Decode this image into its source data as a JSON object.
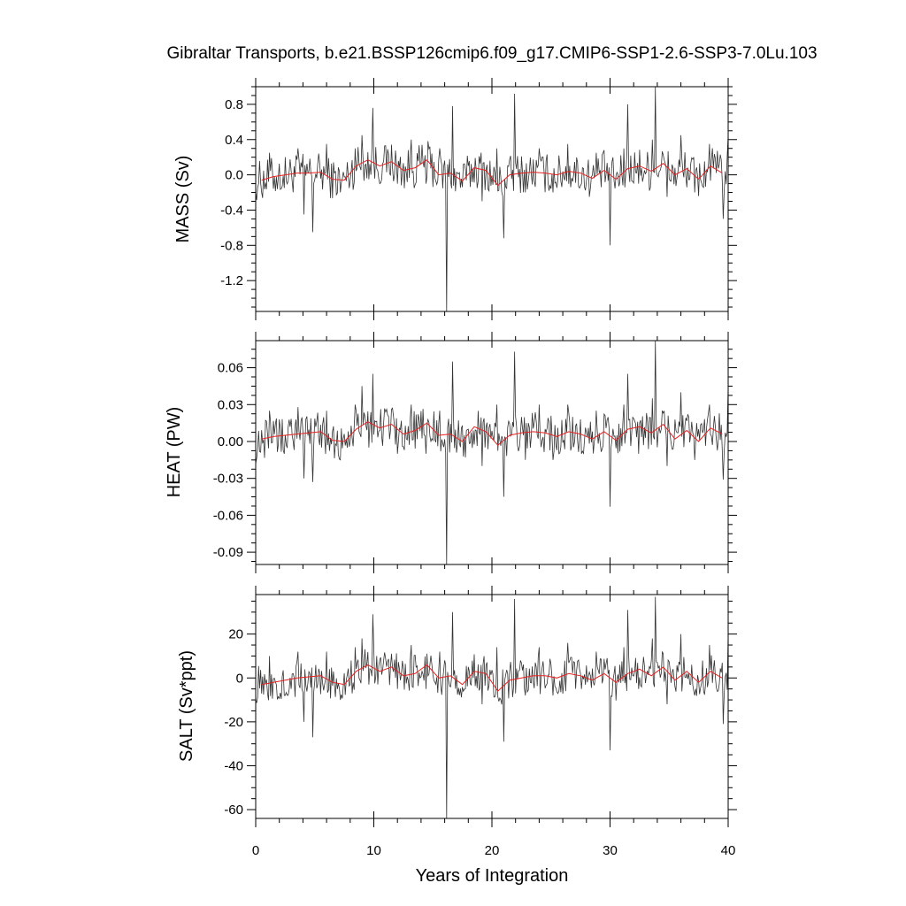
{
  "figure": {
    "title": "Gibraltar Transports, b.e21.BSSP126cmip6.f09_g17.CMIP6-SSP1-2.6-SSP3-7.0Lu.103",
    "xlabel": "Years of Integration"
  },
  "colors": {
    "raw_series": "#333333",
    "smooth_series": "#e82020",
    "axes": "#000000"
  },
  "chart_data": [
    {
      "type": "line",
      "panel": "mass",
      "title": "",
      "xlabel": "",
      "ylabel": "MASS (Sv)",
      "xlim": [
        0,
        40
      ],
      "ylim": [
        -1.55,
        1.0
      ],
      "yticks": [
        -1.2,
        -0.8,
        -0.4,
        0.0,
        0.4,
        0.8
      ],
      "ytick_labels": [
        "-1.2",
        "-0.8",
        "-0.4",
        "0.0",
        "0.4",
        "0.8"
      ],
      "grid": false,
      "series": [
        {
          "kind": "monthly-raw",
          "amplitude": 0.23,
          "x": [
            0.0,
            1.2,
            2.4,
            3.6,
            4.1,
            4.8,
            6.0,
            7.2,
            8.4,
            9.0,
            9.6,
            9.9,
            10.8,
            12.0,
            13.2,
            14.4,
            15.6,
            16.2,
            16.7,
            18.0,
            19.2,
            20.4,
            21.0,
            21.9,
            22.8,
            24.0,
            25.2,
            26.4,
            27.6,
            28.8,
            30.0,
            31.2,
            31.5,
            32.4,
            33.6,
            33.8,
            34.8,
            36.0,
            37.2,
            38.4,
            39.6,
            40.0
          ],
          "y": [
            -0.2,
            0.25,
            -0.15,
            0.3,
            -0.45,
            -0.65,
            0.35,
            -0.2,
            0.3,
            0.45,
            -0.05,
            0.76,
            0.15,
            -0.1,
            0.4,
            -0.1,
            0.3,
            -1.55,
            0.78,
            0.1,
            -0.3,
            0.3,
            -0.72,
            0.92,
            -0.2,
            0.3,
            -0.2,
            0.35,
            -0.1,
            0.25,
            -0.8,
            0.3,
            0.8,
            -0.1,
            0.4,
            1.0,
            -0.25,
            0.45,
            -0.2,
            0.35,
            -0.5,
            0.45
          ]
        },
        {
          "kind": "annual-mean",
          "x": [
            0.5,
            1.5,
            2.5,
            3.5,
            4.5,
            5.5,
            6.5,
            7.5,
            8.5,
            9.5,
            10.5,
            11.5,
            12.5,
            13.5,
            14.5,
            15.5,
            16.5,
            17.5,
            18.5,
            19.5,
            20.5,
            21.5,
            22.5,
            23.5,
            24.5,
            25.5,
            26.5,
            27.5,
            28.5,
            29.5,
            30.5,
            31.5,
            32.5,
            33.5,
            34.5,
            35.5,
            36.5,
            37.5,
            38.5,
            39.5
          ],
          "y": [
            -0.06,
            -0.02,
            0.0,
            0.02,
            0.02,
            0.03,
            -0.05,
            -0.06,
            0.1,
            0.17,
            0.1,
            0.15,
            0.05,
            0.08,
            0.17,
            0.0,
            0.02,
            -0.07,
            0.08,
            0.05,
            -0.12,
            0.0,
            0.02,
            0.03,
            0.02,
            0.0,
            0.04,
            0.02,
            -0.04,
            0.05,
            -0.05,
            0.07,
            0.1,
            0.04,
            0.13,
            0.0,
            0.07,
            -0.05,
            0.1,
            0.02
          ]
        }
      ]
    },
    {
      "type": "line",
      "panel": "heat",
      "title": "",
      "xlabel": "",
      "ylabel": "HEAT (PW)",
      "xlim": [
        0,
        40
      ],
      "ylim": [
        -0.1,
        0.082
      ],
      "yticks": [
        -0.09,
        -0.06,
        -0.03,
        0.0,
        0.03,
        0.06
      ],
      "ytick_labels": [
        "-0.09",
        "-0.06",
        "-0.03",
        "0.00",
        "0.03",
        "0.06"
      ],
      "grid": false,
      "series": [
        {
          "kind": "monthly-raw",
          "amplitude": 0.016,
          "x": [
            0.0,
            1.2,
            2.4,
            3.6,
            4.1,
            4.8,
            6.0,
            7.2,
            8.4,
            9.0,
            9.6,
            9.9,
            10.8,
            12.0,
            13.2,
            14.4,
            15.6,
            16.2,
            16.7,
            18.0,
            19.2,
            20.4,
            21.0,
            21.9,
            22.8,
            24.0,
            25.2,
            26.4,
            27.6,
            28.8,
            30.0,
            31.2,
            31.5,
            32.4,
            33.6,
            33.8,
            34.8,
            36.0,
            37.2,
            38.4,
            39.6,
            40.0
          ],
          "y": [
            -0.018,
            0.025,
            -0.01,
            0.028,
            -0.03,
            -0.033,
            0.025,
            -0.015,
            0.03,
            0.045,
            -0.005,
            0.055,
            0.015,
            -0.01,
            0.03,
            -0.01,
            0.025,
            -0.1,
            0.065,
            0.01,
            -0.02,
            0.03,
            -0.045,
            0.073,
            -0.015,
            0.03,
            -0.015,
            0.03,
            -0.01,
            0.025,
            -0.053,
            0.03,
            0.055,
            -0.01,
            0.035,
            0.082,
            -0.02,
            0.04,
            -0.015,
            0.03,
            -0.031,
            0.045
          ]
        },
        {
          "kind": "annual-mean",
          "x": [
            0.5,
            1.5,
            2.5,
            3.5,
            4.5,
            5.5,
            6.5,
            7.5,
            8.5,
            9.5,
            10.5,
            11.5,
            12.5,
            13.5,
            14.5,
            15.5,
            16.5,
            17.5,
            18.5,
            19.5,
            20.5,
            21.5,
            22.5,
            23.5,
            24.5,
            25.5,
            26.5,
            27.5,
            28.5,
            29.5,
            30.5,
            31.5,
            32.5,
            33.5,
            34.5,
            35.5,
            36.5,
            37.5,
            38.5,
            39.5
          ],
          "y": [
            0.002,
            0.004,
            0.005,
            0.006,
            0.007,
            0.008,
            0.001,
            0.0,
            0.01,
            0.016,
            0.011,
            0.014,
            0.006,
            0.009,
            0.015,
            0.005,
            0.006,
            0.0,
            0.012,
            0.008,
            -0.003,
            0.005,
            0.007,
            0.008,
            0.007,
            0.004,
            0.008,
            0.006,
            0.002,
            0.008,
            0.001,
            0.01,
            0.012,
            0.007,
            0.014,
            0.002,
            0.009,
            0.0,
            0.011,
            0.006
          ]
        }
      ]
    },
    {
      "type": "line",
      "panel": "salt",
      "title": "",
      "xlabel": "",
      "ylabel": "SALT (Sv*ppt)",
      "xlim": [
        0,
        40
      ],
      "ylim": [
        -64,
        38
      ],
      "yticks": [
        -60,
        -40,
        -20,
        0,
        20
      ],
      "ytick_labels": [
        "-60",
        "-40",
        "-20",
        "0",
        "20"
      ],
      "grid": false,
      "series": [
        {
          "kind": "monthly-raw",
          "amplitude": 8.5,
          "x": [
            0.0,
            1.2,
            2.4,
            3.6,
            4.1,
            4.8,
            6.0,
            7.2,
            8.4,
            9.0,
            9.6,
            9.9,
            10.8,
            12.0,
            13.2,
            14.4,
            15.6,
            16.2,
            16.7,
            18.0,
            19.2,
            20.4,
            21.0,
            21.9,
            22.8,
            24.0,
            25.2,
            26.4,
            27.6,
            28.8,
            30.0,
            31.2,
            31.5,
            32.4,
            33.6,
            33.8,
            34.8,
            36.0,
            37.2,
            38.4,
            39.6,
            40.0
          ],
          "y": [
            -10,
            10,
            -8,
            12,
            -20,
            -27,
            12,
            -10,
            14,
            18,
            -3,
            29,
            8,
            -5,
            15,
            -5,
            12,
            -64,
            30,
            5,
            -12,
            14,
            -29,
            36,
            -8,
            14,
            -8,
            16,
            -5,
            12,
            -33,
            14,
            31,
            -5,
            18,
            37,
            -12,
            20,
            -8,
            15,
            -21,
            20
          ]
        },
        {
          "kind": "annual-mean",
          "x": [
            0.5,
            1.5,
            2.5,
            3.5,
            4.5,
            5.5,
            6.5,
            7.5,
            8.5,
            9.5,
            10.5,
            11.5,
            12.5,
            13.5,
            14.5,
            15.5,
            16.5,
            17.5,
            18.5,
            19.5,
            20.5,
            21.5,
            22.5,
            23.5,
            24.5,
            25.5,
            26.5,
            27.5,
            28.5,
            29.5,
            30.5,
            31.5,
            32.5,
            33.5,
            34.5,
            35.5,
            36.5,
            37.5,
            38.5,
            39.5
          ],
          "y": [
            -3,
            -2,
            -1,
            0,
            0.5,
            1,
            -2,
            -3,
            3,
            6,
            3,
            5,
            1,
            2,
            6,
            0,
            1,
            -3,
            3,
            2,
            -6,
            -1,
            0,
            1,
            1,
            0,
            2,
            1,
            -1,
            2,
            -2,
            2,
            4,
            1,
            5,
            -1,
            3,
            -2,
            3,
            0
          ]
        }
      ]
    }
  ],
  "x_axis": {
    "ticks": [
      0,
      10,
      20,
      30,
      40
    ],
    "tick_labels": [
      "0",
      "10",
      "20",
      "30",
      "40"
    ]
  }
}
